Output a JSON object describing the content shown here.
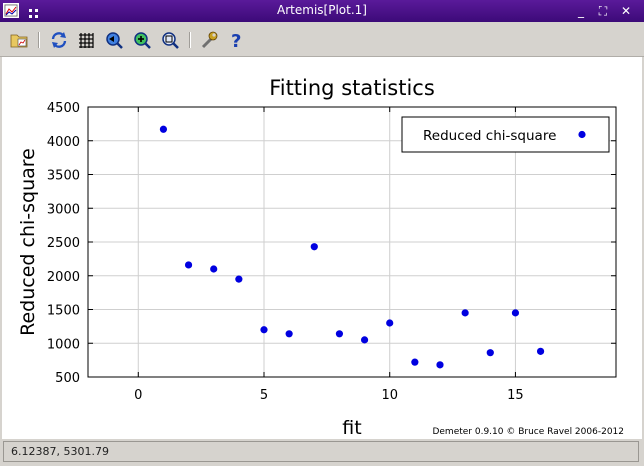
{
  "window": {
    "title": "Artemis[Plot.1]",
    "min_label": "_",
    "max_label": "⛶",
    "close_label": "✕"
  },
  "toolbar": {
    "tools": [
      "open-icon",
      "refresh-icon",
      "grid-icon",
      "zoom-out-icon",
      "zoom-in-icon",
      "zoom-fit-icon",
      "settings-icon",
      "help-icon"
    ]
  },
  "status": {
    "coords": "6.12387,  5301.79"
  },
  "chart_data": {
    "type": "scatter",
    "title": "Fitting statistics",
    "xlabel": "fit",
    "ylabel": "Reduced chi-square",
    "xlim": [
      -2,
      19
    ],
    "ylim": [
      500,
      4500
    ],
    "xticks": [
      0,
      5,
      10,
      15
    ],
    "yticks": [
      500,
      1000,
      1500,
      2000,
      2500,
      3000,
      3500,
      4000,
      4500
    ],
    "grid": true,
    "legend_position": "top-right",
    "credit": "Demeter 0.9.10 © Bruce Ravel 2006-2012",
    "point_color": "#0000e0",
    "series": [
      {
        "name": "Reduced chi-square",
        "x": [
          1,
          2,
          3,
          4,
          5,
          6,
          7,
          8,
          9,
          10,
          11,
          12,
          13,
          14,
          15,
          16
        ],
        "y": [
          4170,
          2160,
          2100,
          1950,
          1200,
          1140,
          2430,
          1140,
          1050,
          1300,
          720,
          680,
          1450,
          860,
          1450,
          880
        ]
      }
    ]
  }
}
